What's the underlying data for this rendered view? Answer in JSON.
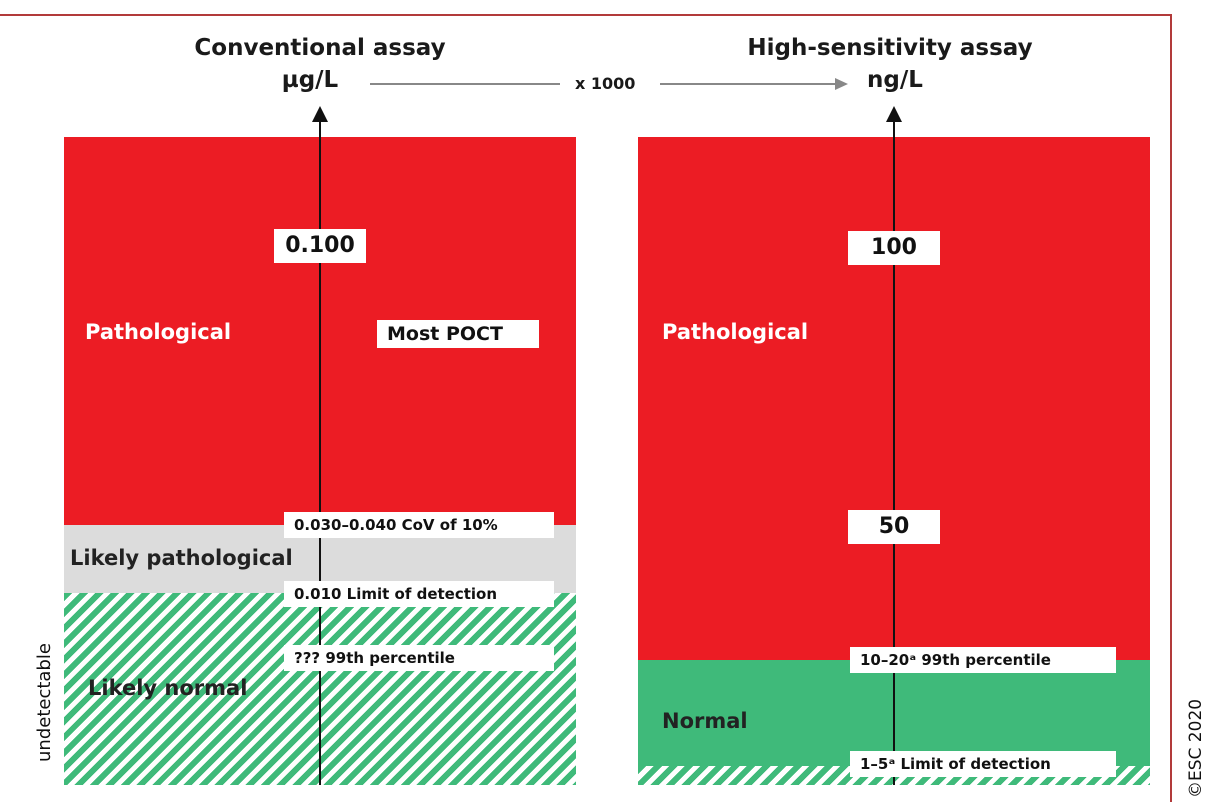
{
  "left_panel": {
    "title": "Conventional assay",
    "unit": "µg/L",
    "side_label": "undetectable",
    "values": {
      "upper": "0.100"
    },
    "labels": {
      "most_poct": "Most POCT",
      "cov": "0.030–0.040  CoV of 10%",
      "lod": "0.010  Limit of detection",
      "p99": "???   99th percentile"
    },
    "regions": {
      "pathological": "Pathological",
      "likely_pathological": "Likely pathological",
      "likely_normal": "Likely normal"
    }
  },
  "conversion": {
    "label": "x 1000"
  },
  "right_panel": {
    "title": "High-sensitivity assay",
    "unit": "ng/L",
    "values": {
      "upper": "100",
      "mid": "50"
    },
    "labels": {
      "p99": "10–20ᵃ  99th percentile",
      "lod": "1–5ᵃ  Limit of detection"
    },
    "regions": {
      "pathological": "Pathological",
      "normal": "Normal"
    }
  },
  "copyright": "©ESC 2020",
  "colors": {
    "red": "#ec1c24",
    "grey": "#dcdcdc",
    "green": "#3fba7a",
    "frame": "#b23a3a"
  }
}
